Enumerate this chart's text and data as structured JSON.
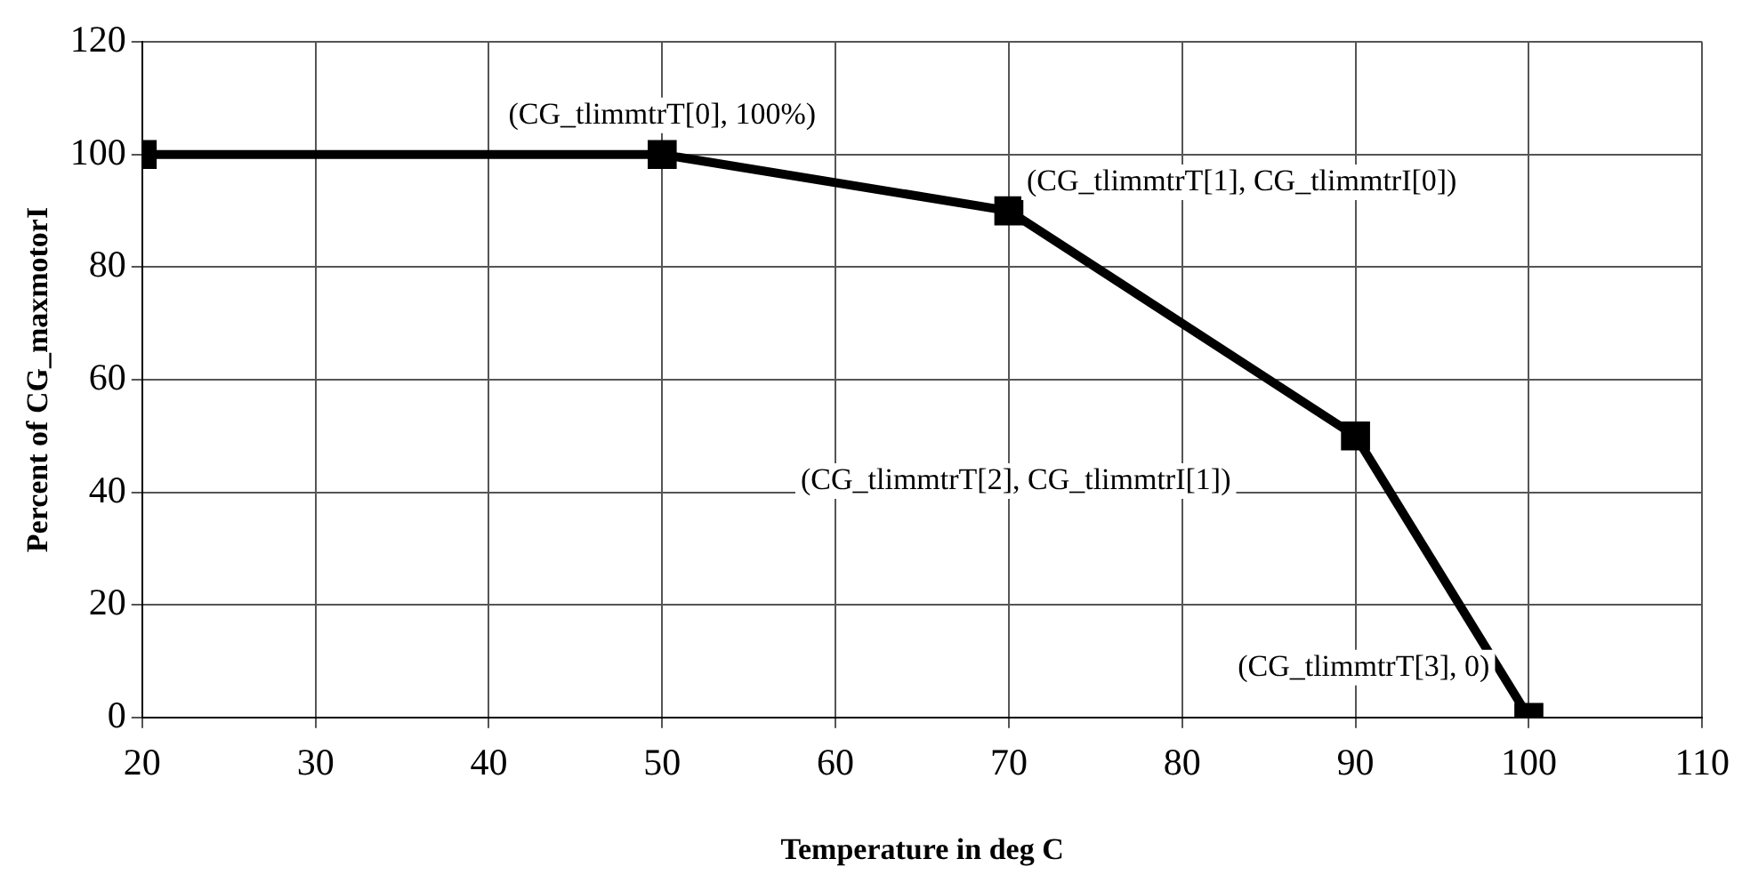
{
  "chart_data": {
    "type": "line",
    "xlabel": "Temperature in deg C",
    "ylabel": "Percent of CG_maxmotorI",
    "x": [
      20,
      50,
      70,
      90,
      100
    ],
    "series": [
      {
        "color": "#000000",
        "values": [
          100,
          100,
          90,
          50,
          0
        ]
      }
    ],
    "xlim": [
      20,
      110
    ],
    "xticks": [
      20,
      30,
      40,
      50,
      60,
      70,
      80,
      90,
      100,
      110
    ],
    "ylim": [
      0,
      120
    ],
    "yticks": [
      0,
      20,
      40,
      60,
      80,
      100,
      120
    ],
    "grid": true,
    "legend": false,
    "marker": "square",
    "line_style": "solid",
    "annotations": [
      {
        "text": "(CG_tlimmtrT[0], 100%)",
        "x": 50,
        "y": 100
      },
      {
        "text": "(CG_tlimmtrT[1], CG_tlimmtrI[0])",
        "x": 70,
        "y": 90
      },
      "(CG_tlimmtrT[2], CG_tlimmtrI[1])",
      {
        "text": "(CG_tlimmtrT[3], 0)",
        "x": 100,
        "y": 0
      }
    ]
  }
}
